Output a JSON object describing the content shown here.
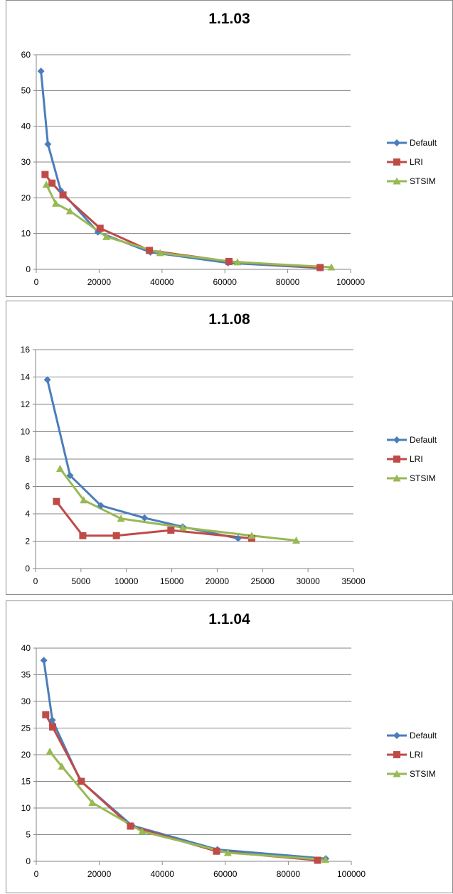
{
  "colors": {
    "Default": "#4a7ebb",
    "LRI": "#be4b48",
    "STSIM": "#98b954"
  },
  "chart_data": [
    {
      "type": "line",
      "title": "1.1.03",
      "xlim": [
        0,
        100000
      ],
      "xticks": [
        0,
        20000,
        40000,
        60000,
        80000,
        100000
      ],
      "ylim": [
        0,
        60
      ],
      "yticks": [
        0,
        10,
        20,
        30,
        40,
        50,
        60
      ],
      "grid": "horizontal",
      "legend": "right",
      "series": [
        {
          "name": "Default",
          "marker": "diamond",
          "points": [
            [
              1500,
              55.4
            ],
            [
              3700,
              35
            ],
            [
              7800,
              22
            ],
            [
              19600,
              10.4
            ],
            [
              36300,
              4.8
            ],
            [
              61000,
              1.8
            ],
            [
              90300,
              0.4
            ]
          ]
        },
        {
          "name": "LRI",
          "marker": "square",
          "points": [
            [
              2800,
              26.5
            ],
            [
              5000,
              24.1
            ],
            [
              8500,
              20.8
            ],
            [
              20300,
              11.5
            ],
            [
              36000,
              5.3
            ],
            [
              61300,
              2.2
            ],
            [
              90300,
              0.5
            ]
          ]
        },
        {
          "name": "STSIM",
          "marker": "triangle",
          "points": [
            [
              3200,
              23.7
            ],
            [
              6200,
              18.4
            ],
            [
              10700,
              16.3
            ],
            [
              22300,
              9.1
            ],
            [
              39400,
              4.6
            ],
            [
              64000,
              2.0
            ],
            [
              93900,
              0.6
            ]
          ]
        }
      ]
    },
    {
      "type": "line",
      "title": "1.1.08",
      "xlim": [
        0,
        35000
      ],
      "xticks": [
        0,
        5000,
        10000,
        15000,
        20000,
        25000,
        30000,
        35000
      ],
      "ylim": [
        0,
        16
      ],
      "yticks": [
        0,
        2,
        4,
        6,
        8,
        10,
        12,
        14,
        16
      ],
      "grid": "horizontal",
      "legend": "right",
      "series": [
        {
          "name": "Default",
          "marker": "diamond",
          "points": [
            [
              1300,
              13.8
            ],
            [
              3800,
              6.8
            ],
            [
              7200,
              4.6
            ],
            [
              12000,
              3.7
            ],
            [
              16200,
              3.05
            ],
            [
              22300,
              2.2
            ]
          ]
        },
        {
          "name": "LRI",
          "marker": "square",
          "points": [
            [
              2300,
              4.9
            ],
            [
              5200,
              2.4
            ],
            [
              8900,
              2.4
            ],
            [
              14900,
              2.8
            ],
            [
              23800,
              2.2
            ]
          ]
        },
        {
          "name": "STSIM",
          "marker": "triangle",
          "points": [
            [
              2700,
              7.3
            ],
            [
              5300,
              5.0
            ],
            [
              9400,
              3.65
            ],
            [
              16200,
              3.0
            ],
            [
              23800,
              2.4
            ],
            [
              28700,
              2.05
            ]
          ]
        }
      ]
    },
    {
      "type": "line",
      "title": "1.1.04",
      "xlim": [
        0,
        100000
      ],
      "xticks": [
        0,
        20000,
        40000,
        60000,
        80000,
        100000
      ],
      "ylim": [
        0,
        40
      ],
      "yticks": [
        0,
        5,
        10,
        15,
        20,
        25,
        30,
        35,
        40
      ],
      "grid": "horizontal",
      "legend": "right",
      "series": [
        {
          "name": "Default",
          "marker": "diamond",
          "points": [
            [
              2400,
              37.7
            ],
            [
              5100,
              26.5
            ],
            [
              14000,
              15.1
            ],
            [
              30400,
              6.7
            ],
            [
              57500,
              2.2
            ],
            [
              91900,
              0.5
            ]
          ]
        },
        {
          "name": "LRI",
          "marker": "square",
          "points": [
            [
              3000,
              27.5
            ],
            [
              5200,
              25.2
            ],
            [
              14300,
              15.0
            ],
            [
              29900,
              6.6
            ],
            [
              57200,
              1.9
            ],
            [
              89300,
              0.2
            ]
          ]
        },
        {
          "name": "STSIM",
          "marker": "triangle",
          "points": [
            [
              4300,
              20.6
            ],
            [
              8100,
              17.8
            ],
            [
              17800,
              11.0
            ],
            [
              33600,
              5.6
            ],
            [
              60800,
              1.6
            ],
            [
              91800,
              0.3
            ]
          ]
        }
      ]
    }
  ]
}
